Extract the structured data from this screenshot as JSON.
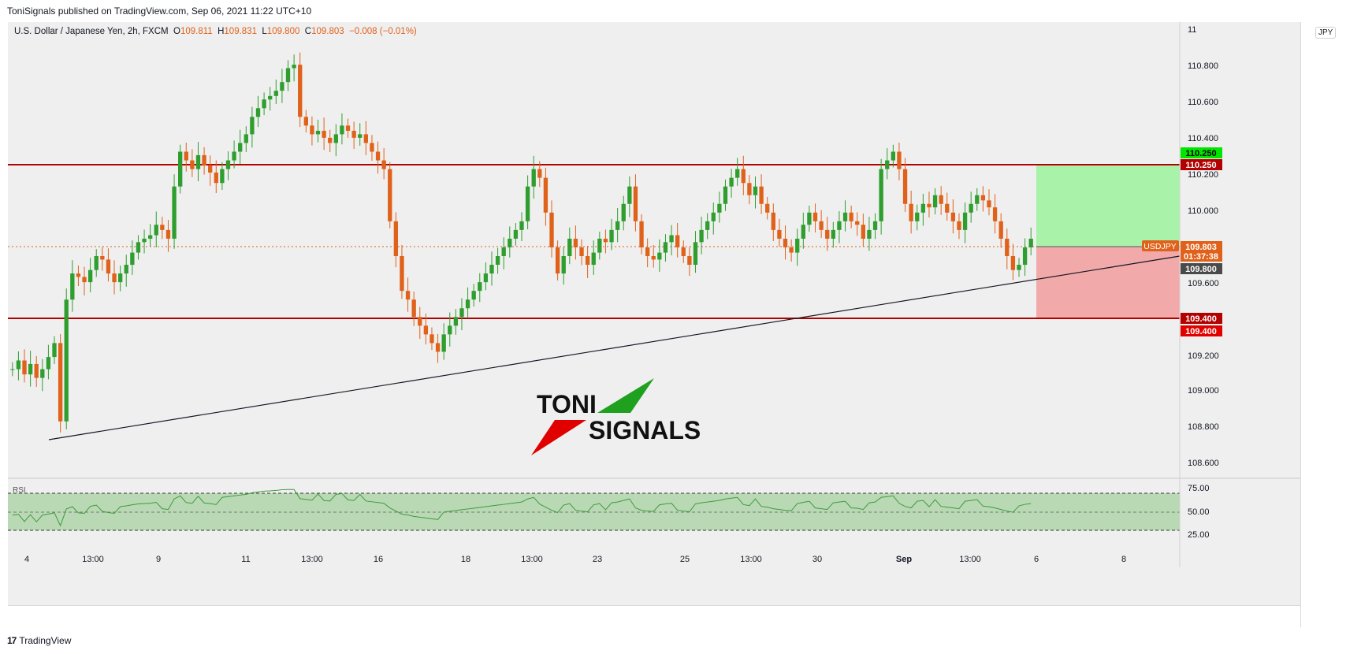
{
  "header": {
    "published_text": "ToniSignals published on TradingView.com, Sep 06, 2021 11:22 UTC+10"
  },
  "legend": {
    "symbol": "U.S. Dollar / Japanese Yen, 2h, FXCM",
    "open_label": "O",
    "open": "109.811",
    "high_label": "H",
    "high": "109.831",
    "low_label": "L",
    "low": "109.800",
    "close_label": "C",
    "close": "109.803",
    "change": "−0.008 (−0.01%)"
  },
  "currency_badge": "JPY",
  "price_axis": {
    "ticks": [
      "110.800",
      "110.600",
      "110.400",
      "110.200",
      "110.000",
      "109.600",
      "109.200",
      "109.000",
      "108.800",
      "108.600"
    ],
    "partial_top_tick": "11",
    "labels": [
      {
        "text": "110.250",
        "bg": "#00e600",
        "fg": "#000000",
        "name": "target-price-label"
      },
      {
        "text": "110.250",
        "bg": "#b30000",
        "fg": "#ffffff",
        "name": "resistance-price-label"
      },
      {
        "text": "109.803",
        "bg": "#e0611a",
        "fg": "#ffffff",
        "name": "last-price-label"
      },
      {
        "text": "01:37:38",
        "bg": "#e0611a",
        "fg": "#ffffff",
        "name": "bar-countdown-label"
      },
      {
        "text": "109.800",
        "bg": "#4a4a4a",
        "fg": "#ffffff",
        "name": "trendline-price-label"
      },
      {
        "text": "109.400",
        "bg": "#b30000",
        "fg": "#ffffff",
        "name": "support-price-label"
      },
      {
        "text": "109.400",
        "bg": "#e00000",
        "fg": "#ffffff",
        "name": "stop-price-label"
      }
    ],
    "symbol_tag": "USDJPY"
  },
  "rsi": {
    "label": "RSI",
    "ticks": [
      "75.00",
      "50.00",
      "25.00"
    ]
  },
  "time_axis": {
    "labels": [
      "4",
      "13:00",
      "9",
      "11",
      "13:00",
      "16",
      "18",
      "13:00",
      "23",
      "25",
      "13:00",
      "30",
      "Sep",
      "13:00",
      "6",
      "8"
    ]
  },
  "logo": {
    "line1": "TONI",
    "line2": "SIGNALS"
  },
  "footer": {
    "brand": "TradingView"
  },
  "colors": {
    "up": "#2e9e2e",
    "down": "#e0611a",
    "level": "#b30000",
    "profit_zone": "#a9f2a9",
    "loss_zone": "#f2a9a9",
    "rsi_band": "#b9d9b4"
  },
  "chart_data": {
    "type": "candlestick",
    "symbol": "USDJPY",
    "interval": "2h",
    "ylim": [
      108.5,
      110.9
    ],
    "resistance": 110.25,
    "support": 109.4,
    "last_price": 109.803,
    "trendline": {
      "from": 108.72,
      "to": 109.78
    },
    "position": {
      "entry": 109.803,
      "target": 110.25,
      "stop": 109.4
    },
    "closes": [
      109.05,
      109.1,
      109.02,
      109.08,
      109.0,
      109.05,
      109.12,
      109.2,
      108.75,
      109.45,
      109.6,
      109.58,
      109.55,
      109.62,
      109.7,
      109.68,
      109.6,
      109.55,
      109.6,
      109.65,
      109.72,
      109.78,
      109.8,
      109.82,
      109.88,
      109.85,
      109.8,
      110.1,
      110.3,
      110.25,
      110.2,
      110.28,
      110.22,
      110.18,
      110.12,
      110.2,
      110.25,
      110.3,
      110.35,
      110.4,
      110.5,
      110.55,
      110.6,
      110.62,
      110.65,
      110.7,
      110.78,
      110.8,
      110.5,
      110.45,
      110.4,
      110.42,
      110.38,
      110.35,
      110.4,
      110.45,
      110.42,
      110.38,
      110.4,
      110.35,
      110.3,
      110.25,
      110.2,
      109.9,
      109.7,
      109.5,
      109.45,
      109.35,
      109.3,
      109.25,
      109.2,
      109.15,
      109.25,
      109.3,
      109.35,
      109.4,
      109.45,
      109.5,
      109.55,
      109.6,
      109.65,
      109.7,
      109.75,
      109.8,
      109.85,
      109.9,
      110.1,
      110.2,
      110.15,
      109.95,
      109.75,
      109.6,
      109.7,
      109.8,
      109.75,
      109.7,
      109.65,
      109.72,
      109.8,
      109.78,
      109.85,
      109.9,
      110.0,
      110.1,
      109.9,
      109.75,
      109.7,
      109.68,
      109.72,
      109.78,
      109.82,
      109.75,
      109.7,
      109.65,
      109.78,
      109.85,
      109.9,
      109.95,
      110.0,
      110.1,
      110.15,
      110.2,
      110.12,
      110.05,
      110.1,
      110.0,
      109.95,
      109.85,
      109.8,
      109.75,
      109.72,
      109.8,
      109.88,
      109.95,
      109.9,
      109.85,
      109.8,
      109.85,
      109.9,
      109.95,
      109.9,
      109.88,
      109.8,
      109.85,
      109.9,
      110.2,
      110.25,
      110.3,
      110.2,
      110.0,
      109.9,
      109.95,
      110.0,
      109.98,
      110.05,
      110.0,
      109.95,
      109.9,
      109.85,
      109.95,
      110.0,
      110.05,
      110.02,
      109.98,
      109.9,
      109.8,
      109.7,
      109.62,
      109.65,
      109.75,
      109.8
    ]
  }
}
